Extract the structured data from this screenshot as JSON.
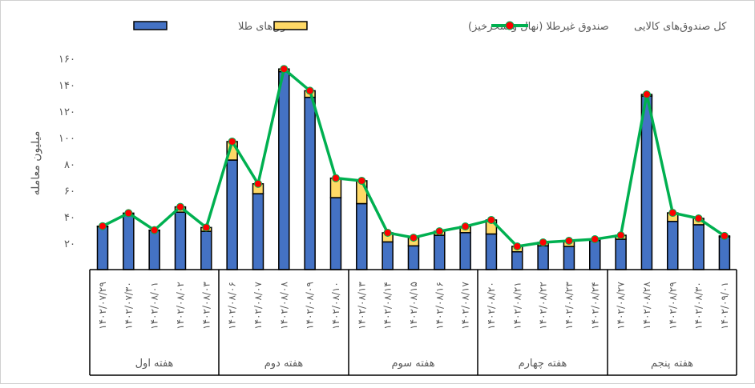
{
  "chart_data": {
    "type": "bar",
    "stacked": true,
    "ylabel": "میلیون معامله",
    "ylim": [
      0,
      160
    ],
    "yticks": [
      "۲۰",
      "۴۰",
      "۶۰",
      "۸۰",
      "۱۰۰",
      "۱۲۰",
      "۱۴۰",
      "۱۶۰"
    ],
    "ytick_values": [
      20,
      40,
      60,
      80,
      100,
      120,
      140,
      160
    ],
    "grid": false,
    "legend_position": "top",
    "categories": [
      "۱۴۰۲/۰۷/۲۹",
      "۱۴۰۲/۰۷/۳۰",
      "۱۴۰۲/۰۸/۰۱",
      "۱۴۰۲/۰۸/۰۲",
      "۱۴۰۲/۰۸/۰۳",
      "۱۴۰۲/۰۸/۰۶",
      "۱۴۰۲/۰۸/۰۷",
      "۱۴۰۲/۰۸/۰۸",
      "۱۴۰۲/۰۸/۰۹",
      "۱۴۰۲/۰۸/۱۰",
      "۱۴۰۲/۰۸/۱۳",
      "۱۴۰۲/۰۸/۱۴",
      "۱۴۰۲/۰۸/۱۵",
      "۱۴۰۲/۰۸/۱۶",
      "۱۴۰۲/۰۸/۱۷",
      "۱۴۰۲/۰۸/۲۰",
      "۱۴۰۲/۰۸/۲۱",
      "۱۴۰۲/۰۸/۲۲",
      "۱۴۰۲/۰۸/۲۳",
      "۱۴۰۲/۰۸/۲۴",
      "۱۴۰۲/۰۸/۲۷",
      "۱۴۰۲/۰۸/۲۸",
      "۱۴۰۲/۰۸/۲۹",
      "۱۴۰۲/۰۸/۳۰",
      "۱۴۰۲/۰۹/۰۱"
    ],
    "groups": [
      {
        "label": "هفته اول",
        "count": 5
      },
      {
        "label": "هفته دوم",
        "count": 5
      },
      {
        "label": "هفته سوم",
        "count": 5
      },
      {
        "label": "هفته چهارم",
        "count": 5
      },
      {
        "label": "هفته پنجم",
        "count": 5
      }
    ],
    "series": [
      {
        "name": "صندوق‌های طلا",
        "type": "bar",
        "color": "#4472C4",
        "values": [
          32.5,
          42,
          29.5,
          43.5,
          29,
          83,
          57.5,
          150,
          130.5,
          54.5,
          50,
          21,
          18,
          26,
          28,
          27,
          13.5,
          18,
          17.5,
          22,
          23,
          131.5,
          36.5,
          34,
          24.8
        ]
      },
      {
        "name": "صندوق غیرطلا (نهال و سحرخیز)",
        "type": "bar",
        "color": "#FFD966",
        "values": [
          0.4,
          0.8,
          0.4,
          4,
          2.9,
          14,
          7.5,
          2,
          5,
          14.8,
          17.3,
          6.9,
          6.2,
          3,
          4.7,
          10.6,
          4.1,
          2.6,
          4.3,
          1,
          3,
          1.2,
          6.5,
          4.8,
          0.7
        ]
      },
      {
        "name": "کل صندوق‌های کالایی",
        "type": "line",
        "color": "#00B050",
        "marker_color": "#FF0000",
        "values": [
          32.9,
          42.8,
          29.9,
          47.5,
          31.9,
          97,
          65,
          152,
          135.5,
          69.3,
          67.3,
          27.9,
          24.2,
          29,
          32.7,
          37.6,
          17.6,
          20.6,
          21.8,
          23,
          26,
          132.7,
          43,
          38.8,
          25.5
        ]
      }
    ]
  }
}
